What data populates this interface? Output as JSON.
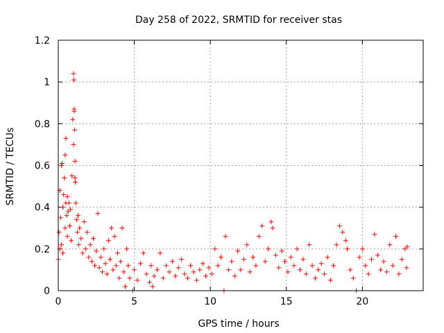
{
  "chart_data": {
    "type": "scatter",
    "title": "Day 258 of 2022, SRMTID for receiver stas",
    "xlabel": "GPS time / hours",
    "ylabel": "SRMTID / TECUs",
    "xlim": [
      0,
      24
    ],
    "ylim": [
      0,
      1.2
    ],
    "x_ticks": [
      0,
      5,
      10,
      15,
      20
    ],
    "y_ticks": [
      0,
      0.2,
      0.4,
      0.6,
      0.8,
      1,
      1.2
    ],
    "x_tick_labels": [
      "0",
      "5",
      "10",
      "15",
      "20"
    ],
    "y_tick_labels": [
      "0",
      "0.2",
      "0.4",
      "0.6",
      "0.8",
      "1",
      "1.2"
    ],
    "grid": true,
    "marker": "+",
    "marker_color": "#ff0000",
    "series": [
      {
        "name": "SRMTID",
        "points": [
          [
            0.0,
            0.15
          ],
          [
            0.05,
            0.28
          ],
          [
            0.1,
            0.2
          ],
          [
            0.1,
            0.48
          ],
          [
            0.15,
            0.35
          ],
          [
            0.2,
            0.6
          ],
          [
            0.2,
            0.22
          ],
          [
            0.25,
            0.61
          ],
          [
            0.3,
            0.4
          ],
          [
            0.3,
            0.18
          ],
          [
            0.35,
            0.46
          ],
          [
            0.4,
            0.54
          ],
          [
            0.45,
            0.65
          ],
          [
            0.45,
            0.3
          ],
          [
            0.5,
            0.73
          ],
          [
            0.5,
            0.42
          ],
          [
            0.55,
            0.36
          ],
          [
            0.6,
            0.26
          ],
          [
            0.6,
            0.45
          ],
          [
            0.65,
            0.38
          ],
          [
            0.7,
            0.42
          ],
          [
            0.75,
            0.31
          ],
          [
            0.8,
            0.39
          ],
          [
            0.85,
            0.24
          ],
          [
            0.9,
            0.55
          ],
          [
            0.95,
            0.82
          ],
          [
            1.0,
            0.7
          ],
          [
            1.0,
            1.04
          ],
          [
            1.02,
            1.01
          ],
          [
            1.05,
            0.87
          ],
          [
            1.05,
            0.86
          ],
          [
            1.08,
            0.77
          ],
          [
            1.1,
            0.62
          ],
          [
            1.1,
            0.54
          ],
          [
            1.12,
            0.52
          ],
          [
            1.15,
            0.42
          ],
          [
            1.2,
            0.34
          ],
          [
            1.25,
            0.28
          ],
          [
            1.3,
            0.36
          ],
          [
            1.35,
            0.22
          ],
          [
            1.4,
            0.3
          ],
          [
            1.5,
            0.25
          ],
          [
            1.6,
            0.18
          ],
          [
            1.7,
            0.33
          ],
          [
            1.8,
            0.2
          ],
          [
            1.9,
            0.28
          ],
          [
            2.0,
            0.16
          ],
          [
            2.1,
            0.22
          ],
          [
            2.2,
            0.14
          ],
          [
            2.3,
            0.25
          ],
          [
            2.4,
            0.12
          ],
          [
            2.5,
            0.19
          ],
          [
            2.6,
            0.37
          ],
          [
            2.7,
            0.11
          ],
          [
            2.8,
            0.16
          ],
          [
            2.9,
            0.09
          ],
          [
            3.0,
            0.2
          ],
          [
            3.1,
            0.13
          ],
          [
            3.2,
            0.08
          ],
          [
            3.3,
            0.24
          ],
          [
            3.4,
            0.15
          ],
          [
            3.5,
            0.3
          ],
          [
            3.6,
            0.1
          ],
          [
            3.7,
            0.26
          ],
          [
            3.8,
            0.12
          ],
          [
            3.9,
            0.18
          ],
          [
            4.0,
            0.06
          ],
          [
            4.1,
            0.14
          ],
          [
            4.2,
            0.3
          ],
          [
            4.3,
            0.09
          ],
          [
            4.4,
            0.02
          ],
          [
            4.5,
            0.2
          ],
          [
            4.6,
            0.12
          ],
          [
            4.7,
            0.06
          ],
          [
            4.9,
            0.0
          ],
          [
            5.0,
            0.1
          ],
          [
            5.2,
            0.05
          ],
          [
            5.4,
            0.13
          ],
          [
            5.6,
            0.18
          ],
          [
            5.8,
            0.08
          ],
          [
            6.0,
            0.04
          ],
          [
            6.1,
            0.12
          ],
          [
            6.2,
            0.02
          ],
          [
            6.3,
            0.07
          ],
          [
            6.5,
            0.1
          ],
          [
            6.7,
            0.18
          ],
          [
            6.9,
            0.06
          ],
          [
            7.1,
            0.12
          ],
          [
            7.3,
            0.09
          ],
          [
            7.5,
            0.14
          ],
          [
            7.7,
            0.07
          ],
          [
            7.9,
            0.11
          ],
          [
            8.1,
            0.15
          ],
          [
            8.3,
            0.08
          ],
          [
            8.5,
            0.06
          ],
          [
            8.7,
            0.12
          ],
          [
            8.9,
            0.09
          ],
          [
            9.1,
            0.05
          ],
          [
            9.3,
            0.1
          ],
          [
            9.5,
            0.13
          ],
          [
            9.7,
            0.07
          ],
          [
            9.9,
            0.11
          ],
          [
            10.1,
            0.08
          ],
          [
            10.3,
            0.2
          ],
          [
            10.5,
            0.12
          ],
          [
            10.7,
            0.16
          ],
          [
            10.9,
            0.0
          ],
          [
            11.0,
            0.26
          ],
          [
            11.2,
            0.1
          ],
          [
            11.4,
            0.14
          ],
          [
            11.6,
            0.07
          ],
          [
            11.8,
            0.19
          ],
          [
            12.0,
            0.1
          ],
          [
            12.2,
            0.15
          ],
          [
            12.4,
            0.22
          ],
          [
            12.6,
            0.09
          ],
          [
            12.8,
            0.16
          ],
          [
            13.0,
            0.12
          ],
          [
            13.2,
            0.26
          ],
          [
            13.4,
            0.31
          ],
          [
            13.6,
            0.14
          ],
          [
            13.8,
            0.2
          ],
          [
            14.0,
            0.33
          ],
          [
            14.1,
            0.3
          ],
          [
            14.3,
            0.17
          ],
          [
            14.5,
            0.11
          ],
          [
            14.7,
            0.19
          ],
          [
            14.9,
            0.14
          ],
          [
            15.1,
            0.09
          ],
          [
            15.3,
            0.16
          ],
          [
            15.5,
            0.12
          ],
          [
            15.7,
            0.2
          ],
          [
            15.9,
            0.1
          ],
          [
            16.1,
            0.15
          ],
          [
            16.3,
            0.08
          ],
          [
            16.5,
            0.22
          ],
          [
            16.7,
            0.12
          ],
          [
            16.9,
            0.06
          ],
          [
            17.1,
            0.1
          ],
          [
            17.3,
            0.13
          ],
          [
            17.5,
            0.08
          ],
          [
            17.7,
            0.16
          ],
          [
            17.9,
            0.05
          ],
          [
            18.1,
            0.12
          ],
          [
            18.3,
            0.22
          ],
          [
            18.5,
            0.31
          ],
          [
            18.7,
            0.28
          ],
          [
            18.9,
            0.24
          ],
          [
            19.0,
            0.2
          ],
          [
            19.2,
            0.1
          ],
          [
            19.4,
            0.06
          ],
          [
            19.6,
            0.0
          ],
          [
            19.8,
            0.16
          ],
          [
            20.0,
            0.2
          ],
          [
            20.2,
            0.12
          ],
          [
            20.4,
            0.08
          ],
          [
            20.6,
            0.15
          ],
          [
            20.8,
            0.27
          ],
          [
            21.0,
            0.17
          ],
          [
            21.2,
            0.1
          ],
          [
            21.4,
            0.14
          ],
          [
            21.6,
            0.09
          ],
          [
            21.8,
            0.22
          ],
          [
            22.0,
            0.12
          ],
          [
            22.2,
            0.26
          ],
          [
            22.4,
            0.08
          ],
          [
            22.6,
            0.15
          ],
          [
            22.8,
            0.2
          ],
          [
            22.9,
            0.11
          ],
          [
            22.95,
            0.21
          ]
        ]
      }
    ]
  }
}
